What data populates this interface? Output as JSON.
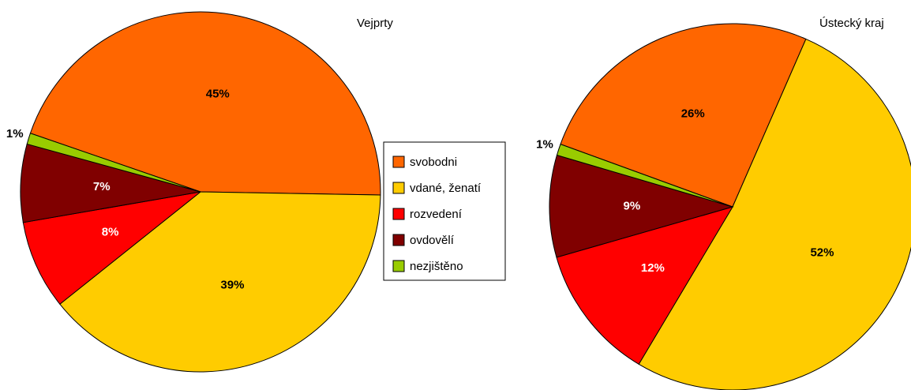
{
  "chart_data": [
    {
      "type": "pie",
      "title": "Vejprty",
      "categories": [
        "svobodni",
        "vdané, ženatí",
        "rozvedení",
        "ovdovělí",
        "nezjištěno"
      ],
      "values": [
        45,
        39,
        8,
        7,
        1
      ],
      "value_labels": [
        "45%",
        "39%",
        "8%",
        "7%",
        "1%"
      ],
      "colors": [
        "#ff6600",
        "#ffcc00",
        "#ff0000",
        "#800000",
        "#99cc00"
      ],
      "legend": "center"
    },
    {
      "type": "pie",
      "title": "Ústecký kraj",
      "categories": [
        "svobodni",
        "vdané, ženatí",
        "rozvedení",
        "ovdovělí",
        "nezjištěno"
      ],
      "values": [
        26,
        52,
        12,
        9,
        1
      ],
      "value_labels": [
        "26%",
        "52%",
        "12%",
        "9%",
        "1%"
      ],
      "colors": [
        "#ff6600",
        "#ffcc00",
        "#ff0000",
        "#800000",
        "#99cc00"
      ]
    }
  ]
}
